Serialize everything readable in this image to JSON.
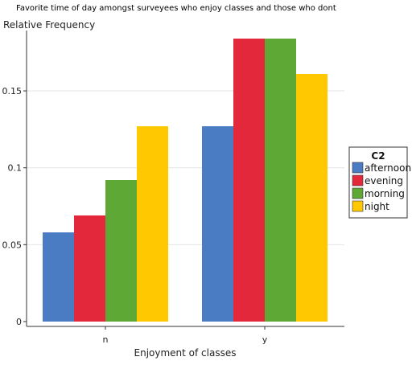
{
  "chart_data": {
    "type": "bar",
    "title": "Favorite time of day amongst surveyees who enjoy classes and those who dont",
    "xlabel": "Enjoyment of classes",
    "ylabel": "Relative Frequency",
    "categories": [
      "n",
      "y"
    ],
    "series": [
      {
        "name": "afternoon",
        "color": "#4a7cc3",
        "values": [
          0.058,
          0.127
        ]
      },
      {
        "name": "evening",
        "color": "#e3283b",
        "values": [
          0.069,
          0.184
        ]
      },
      {
        "name": "morning",
        "color": "#5ea836",
        "values": [
          0.092,
          0.184
        ]
      },
      {
        "name": "night",
        "color": "#ffc800",
        "values": [
          0.127,
          0.161
        ]
      }
    ],
    "ylim": [
      0,
      0.184
    ],
    "yticks": [
      0,
      0.05,
      0.1,
      0.15
    ],
    "ytick_labels": [
      "0",
      "0.05",
      "0.1",
      "0.15"
    ],
    "grid": true,
    "legend": {
      "title": "C2",
      "placement": "right"
    }
  }
}
